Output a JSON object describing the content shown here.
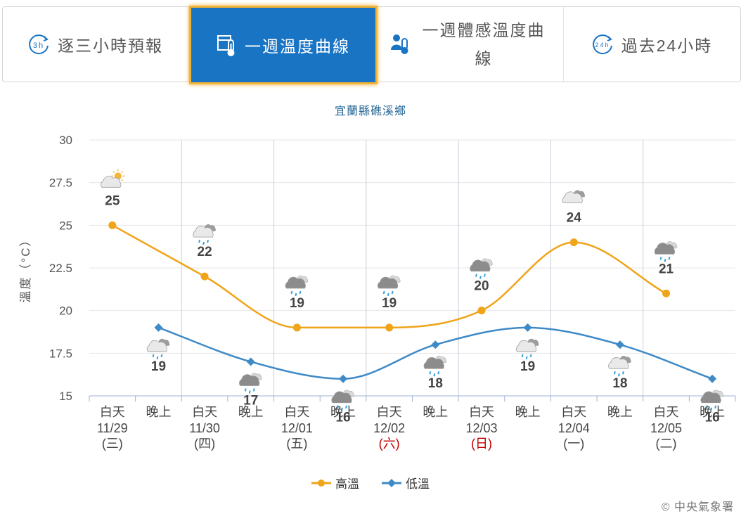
{
  "tabs": [
    {
      "label": "逐三小時預報",
      "icon": "3h-clock-icon",
      "active": false
    },
    {
      "label": "一週溫度曲線",
      "icon": "calendar-thermometer-icon",
      "active": true
    },
    {
      "label": "一週體感溫度曲線",
      "icon": "person-thermometer-icon",
      "active": false
    },
    {
      "label": "過去24小時",
      "icon": "24h-clock-icon",
      "active": false
    }
  ],
  "station": "宜蘭縣礁溪鄉",
  "legend": {
    "high": "高溫",
    "low": "低溫"
  },
  "credit": "© 中央氣象署",
  "colors": {
    "high": "#f0a419",
    "low": "#3e8ac7",
    "accent": "#1a74c4",
    "holiday": "#c00000"
  },
  "chart_data": {
    "type": "line",
    "title": "",
    "ylabel": "溫度（°C）",
    "ylim": [
      15,
      30
    ],
    "yticks": [
      "30",
      "27.5",
      "25",
      "22.5",
      "20",
      "17.5",
      "15"
    ],
    "categories": [
      {
        "period": "白天",
        "date": "11/29",
        "weekday": "(三)",
        "holiday": false
      },
      {
        "period": "晚上"
      },
      {
        "period": "白天",
        "date": "11/30",
        "weekday": "(四)",
        "holiday": false
      },
      {
        "period": "晚上"
      },
      {
        "period": "白天",
        "date": "12/01",
        "weekday": "(五)",
        "holiday": false
      },
      {
        "period": "晚上"
      },
      {
        "period": "白天",
        "date": "12/02",
        "weekday": "(六)",
        "holiday": true
      },
      {
        "period": "晚上"
      },
      {
        "period": "白天",
        "date": "12/03",
        "weekday": "(日)",
        "holiday": true
      },
      {
        "period": "晚上"
      },
      {
        "period": "白天",
        "date": "12/04",
        "weekday": "(一)",
        "holiday": false
      },
      {
        "period": "晚上"
      },
      {
        "period": "白天",
        "date": "12/05",
        "weekday": "(二)",
        "holiday": false
      },
      {
        "period": "晚上"
      }
    ],
    "series": [
      {
        "name": "高溫",
        "points": [
          [
            0,
            25
          ],
          [
            2,
            22
          ],
          [
            4,
            19
          ],
          [
            6,
            19
          ],
          [
            8,
            20
          ],
          [
            10,
            24
          ],
          [
            12,
            21
          ]
        ]
      },
      {
        "name": "低溫",
        "points": [
          [
            1,
            19
          ],
          [
            3,
            17
          ],
          [
            5,
            16
          ],
          [
            7,
            18
          ],
          [
            9,
            19
          ],
          [
            11,
            18
          ],
          [
            13,
            16
          ]
        ]
      }
    ],
    "labels": [
      {
        "slot": 0,
        "value": 25,
        "icon": "partly-cloudy-sun-icon"
      },
      {
        "slot": 1,
        "value": 19,
        "icon": "cloudy-rain-icon"
      },
      {
        "slot": 2,
        "value": 22,
        "icon": "cloudy-rain-icon"
      },
      {
        "slot": 3,
        "value": 17,
        "icon": "overcast-rain-icon"
      },
      {
        "slot": 4,
        "value": 19,
        "icon": "overcast-rain-icon"
      },
      {
        "slot": 5,
        "value": 16,
        "icon": "overcast-rain-icon"
      },
      {
        "slot": 6,
        "value": 19,
        "icon": "overcast-rain-icon"
      },
      {
        "slot": 7,
        "value": 18,
        "icon": "overcast-rain-icon"
      },
      {
        "slot": 8,
        "value": 20,
        "icon": "overcast-rain-icon"
      },
      {
        "slot": 9,
        "value": 19,
        "icon": "cloudy-rain-icon"
      },
      {
        "slot": 10,
        "value": 24,
        "icon": "cloudy-icon"
      },
      {
        "slot": 11,
        "value": 18,
        "icon": "cloudy-rain-icon"
      },
      {
        "slot": 12,
        "value": 21,
        "icon": "overcast-rain-icon"
      },
      {
        "slot": 13,
        "value": 16,
        "icon": "overcast-rain-icon"
      }
    ]
  }
}
